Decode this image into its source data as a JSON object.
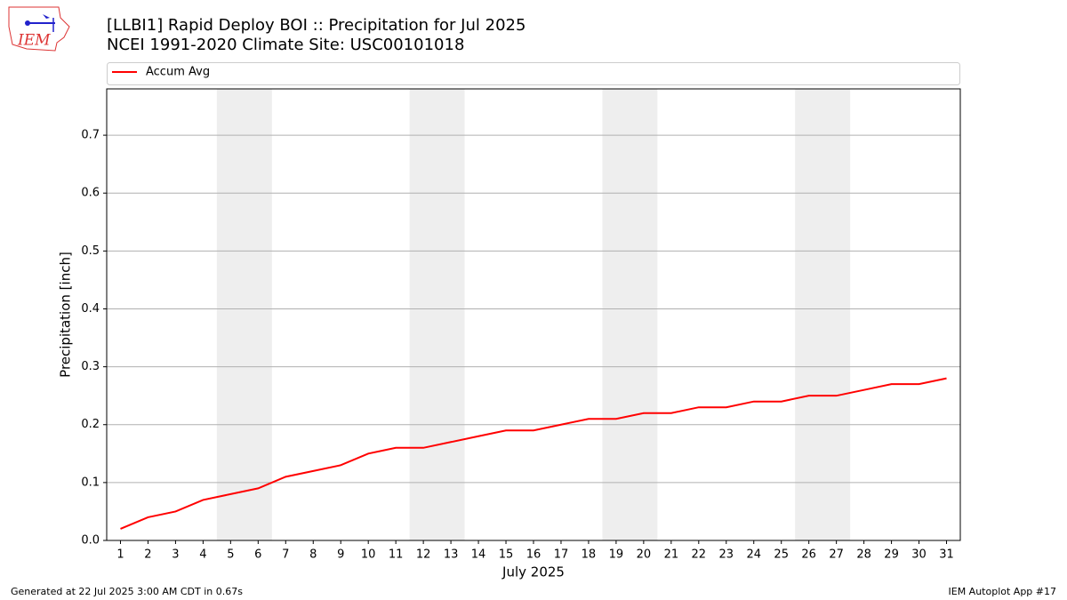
{
  "chart_data": {
    "type": "line",
    "title": "[LLBI1] Rapid Deploy BOI :: Precipitation for Jul 2025",
    "subtitle": "NCEI 1991-2020 Climate Site: USC00101018",
    "xlabel": "July 2025",
    "ylabel": "Precipitation [inch]",
    "x": [
      1,
      2,
      3,
      4,
      5,
      6,
      7,
      8,
      9,
      10,
      11,
      12,
      13,
      14,
      15,
      16,
      17,
      18,
      19,
      20,
      21,
      22,
      23,
      24,
      25,
      26,
      27,
      28,
      29,
      30,
      31
    ],
    "series": [
      {
        "name": "Accum Avg",
        "color": "#ff0000",
        "values": [
          0.02,
          0.04,
          0.05,
          0.07,
          0.08,
          0.09,
          0.11,
          0.12,
          0.13,
          0.15,
          0.16,
          0.16,
          0.17,
          0.18,
          0.19,
          0.19,
          0.2,
          0.21,
          0.21,
          0.22,
          0.22,
          0.23,
          0.23,
          0.24,
          0.24,
          0.25,
          0.25,
          0.26,
          0.27,
          0.27,
          0.28
        ]
      }
    ],
    "xlim": [
      0.5,
      31.5
    ],
    "xticks": [
      1,
      2,
      3,
      4,
      5,
      6,
      7,
      8,
      9,
      10,
      11,
      12,
      13,
      14,
      15,
      16,
      17,
      18,
      19,
      20,
      21,
      22,
      23,
      24,
      25,
      26,
      27,
      28,
      29,
      30,
      31
    ],
    "ylim": [
      0,
      0.78
    ],
    "yticks": [
      {
        "value": 0,
        "label": "0.0"
      },
      0.1,
      0.2,
      0.3,
      0.4,
      0.5,
      0.6,
      0.7
    ],
    "grid": true,
    "shaded_spans": [
      [
        4.5,
        6.5
      ],
      [
        11.5,
        13.5
      ],
      [
        18.5,
        20.5
      ],
      [
        25.5,
        27.5
      ]
    ],
    "shade_color": "#eeeeee",
    "legend": "top"
  },
  "logo_text": "IEM",
  "footer_left": "Generated at 22 Jul 2025 3:00 AM CDT in 0.67s",
  "footer_right": "IEM Autoplot App #17"
}
